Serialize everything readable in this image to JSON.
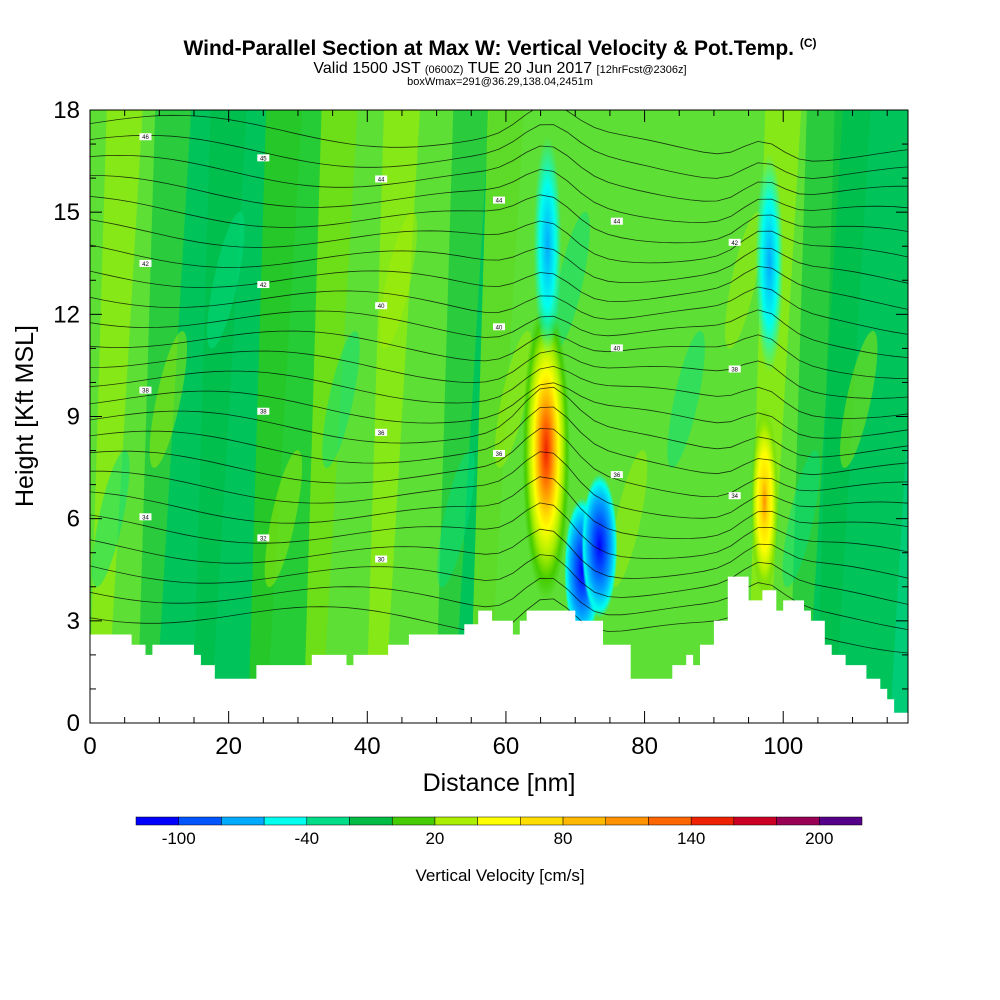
{
  "header": {
    "title": "Wind-Parallel Section at Max W: Vertical Velocity & Pot.Temp.",
    "copyright": "(C)",
    "valid_prefix": "Valid 1500 JST",
    "valid_utc": "(0600Z)",
    "valid_date": "TUE 20 Jun 2017",
    "forecast": "[12hrFcst@2306z]",
    "box_info": "boxWmax=291@36.29,138.04,2451m"
  },
  "chart_data": {
    "type": "heatmap",
    "xlabel": "Distance [nm]",
    "ylabel": "Height [Kft MSL]",
    "xlim": [
      0,
      118
    ],
    "ylim": [
      0,
      18
    ],
    "x_ticks": [
      0,
      20,
      40,
      60,
      80,
      100
    ],
    "y_ticks": [
      0,
      3,
      6,
      9,
      12,
      15,
      18
    ],
    "background_class": [
      "20",
      "20",
      "-20",
      "-20",
      "0",
      "20",
      "20",
      "-20"
    ],
    "bg_pattern_x": [
      0,
      5,
      12,
      20,
      28,
      36,
      45,
      55,
      60,
      100,
      106,
      110,
      118
    ],
    "terrain": [
      [
        0,
        2.6
      ],
      [
        6,
        2.6
      ],
      [
        6,
        2.3
      ],
      [
        8,
        2.3
      ],
      [
        8,
        2.0
      ],
      [
        9,
        2.0
      ],
      [
        9,
        2.3
      ],
      [
        15,
        2.3
      ],
      [
        15,
        2.0
      ],
      [
        16,
        2.0
      ],
      [
        16,
        1.7
      ],
      [
        18,
        1.7
      ],
      [
        18,
        1.3
      ],
      [
        24,
        1.3
      ],
      [
        24,
        1.7
      ],
      [
        32,
        1.7
      ],
      [
        32,
        2.0
      ],
      [
        37,
        2.0
      ],
      [
        37,
        1.7
      ],
      [
        38,
        1.7
      ],
      [
        38,
        2.0
      ],
      [
        43,
        2.0
      ],
      [
        43,
        2.3
      ],
      [
        46,
        2.3
      ],
      [
        46,
        2.6
      ],
      [
        54,
        2.6
      ],
      [
        54,
        2.9
      ],
      [
        56,
        2.9
      ],
      [
        56,
        3.3
      ],
      [
        58,
        3.3
      ],
      [
        58,
        3.0
      ],
      [
        61,
        3.0
      ],
      [
        61,
        2.6
      ],
      [
        62,
        2.6
      ],
      [
        62,
        3.0
      ],
      [
        63,
        3.0
      ],
      [
        63,
        3.3
      ],
      [
        70,
        3.3
      ],
      [
        70,
        3.0
      ],
      [
        74,
        3.0
      ],
      [
        74,
        2.3
      ],
      [
        78,
        2.3
      ],
      [
        78,
        1.3
      ],
      [
        84,
        1.3
      ],
      [
        84,
        1.7
      ],
      [
        86,
        1.7
      ],
      [
        86,
        2.0
      ],
      [
        87,
        2.0
      ],
      [
        87,
        1.7
      ],
      [
        88,
        1.7
      ],
      [
        88,
        2.3
      ],
      [
        90,
        2.3
      ],
      [
        90,
        3.0
      ],
      [
        92,
        3.0
      ],
      [
        92,
        4.3
      ],
      [
        95,
        4.3
      ],
      [
        95,
        3.6
      ],
      [
        97,
        3.6
      ],
      [
        97,
        3.9
      ],
      [
        99,
        3.9
      ],
      [
        99,
        3.3
      ],
      [
        100,
        3.3
      ],
      [
        100,
        3.6
      ],
      [
        103,
        3.6
      ],
      [
        103,
        3.3
      ],
      [
        104,
        3.3
      ],
      [
        104,
        3.0
      ],
      [
        106,
        3.0
      ],
      [
        106,
        2.3
      ],
      [
        107,
        2.3
      ],
      [
        107,
        2.0
      ],
      [
        109,
        2.0
      ],
      [
        109,
        1.7
      ],
      [
        112,
        1.7
      ],
      [
        112,
        1.3
      ],
      [
        114,
        1.3
      ],
      [
        114,
        1.0
      ],
      [
        115,
        1.0
      ],
      [
        115,
        0.7
      ],
      [
        116,
        0.7
      ],
      [
        116,
        0.3
      ],
      [
        118,
        0.3
      ]
    ],
    "plumes": [
      {
        "type": "updraft",
        "x": 65.8,
        "y": 8.0,
        "max": 291
      },
      {
        "type": "downdraft",
        "x": 71.0,
        "y": 4.5,
        "min": -100
      },
      {
        "type": "downdraft",
        "x": 73.5,
        "y": 5.2,
        "min": -100
      },
      {
        "type": "updraft",
        "x": 97.3,
        "y": 6.5,
        "max": 120
      },
      {
        "type": "downdraft",
        "x": 66.0,
        "y": 14.0,
        "min": -60
      },
      {
        "type": "downdraft",
        "x": 98.0,
        "y": 13.5,
        "min": -40
      }
    ],
    "theta_contour_labels": [
      "46",
      "45",
      "44",
      "44",
      "44",
      "42",
      "42",
      "42",
      "40",
      "40",
      "40",
      "38",
      "38",
      "38",
      "36",
      "36",
      "36",
      "34",
      "34",
      "32",
      "30"
    ],
    "colorbar": {
      "label": "Vertical Velocity [cm/s]",
      "colors": [
        "#0000ff",
        "#0055ff",
        "#00aaff",
        "#00ffee",
        "#00dd88",
        "#00bb44",
        "#44cc00",
        "#aaee00",
        "#ffff00",
        "#ffdd00",
        "#ffb800",
        "#ff9200",
        "#ff6600",
        "#ee2200",
        "#cc0022",
        "#990055",
        "#550088"
      ],
      "tick_labels": [
        "-100",
        "-40",
        "20",
        "80",
        "140",
        "200"
      ],
      "tick_values": [
        -100,
        -40,
        20,
        80,
        140,
        200
      ],
      "min": -120,
      "max": 220
    }
  }
}
